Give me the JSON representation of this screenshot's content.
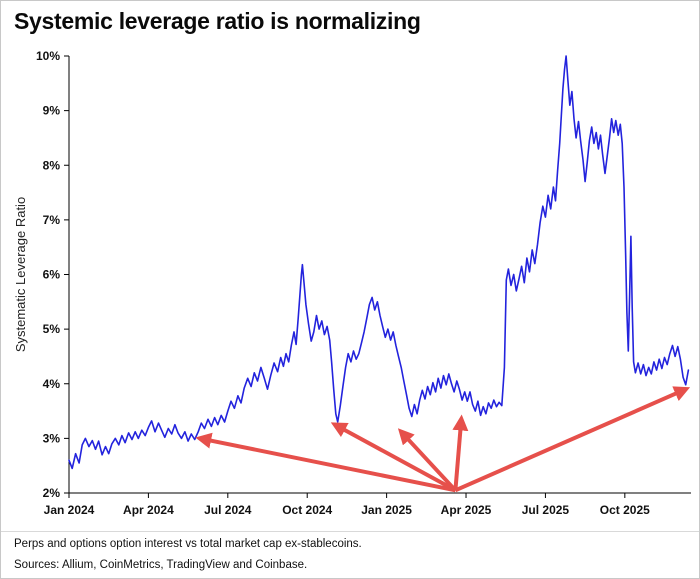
{
  "header": {
    "title": "Systemic leverage ratio is normalizing"
  },
  "footer": {
    "line1": "Perps and options option interest vs total market cap ex-stablecoins.",
    "line2": "Sources: Allium, CoinMetrics, TradingView and Coinbase."
  },
  "chart_data": {
    "type": "line",
    "title": "Systemic leverage ratio is normalizing",
    "xlabel": "",
    "ylabel": "Systematic Leverage Ratio",
    "ylim": [
      2,
      10
    ],
    "xlim": [
      0,
      23.5
    ],
    "x_unit": "months since Jan 2024",
    "grid": false,
    "legend": "none",
    "line_color": "#2323dd",
    "y_ticks": [
      {
        "value": 2,
        "label": "2%"
      },
      {
        "value": 3,
        "label": "3%"
      },
      {
        "value": 4,
        "label": "4%"
      },
      {
        "value": 5,
        "label": "5%"
      },
      {
        "value": 6,
        "label": "6%"
      },
      {
        "value": 7,
        "label": "7%"
      },
      {
        "value": 8,
        "label": "8%"
      },
      {
        "value": 9,
        "label": "9%"
      },
      {
        "value": 10,
        "label": "10%"
      }
    ],
    "x_ticks": [
      {
        "t": 0,
        "label": "Jan 2024"
      },
      {
        "t": 3,
        "label": "Apr 2024"
      },
      {
        "t": 6,
        "label": "Jul 2024"
      },
      {
        "t": 9,
        "label": "Oct 2024"
      },
      {
        "t": 12,
        "label": "Jan 2025"
      },
      {
        "t": 15,
        "label": "Apr 2025"
      },
      {
        "t": 18,
        "label": "Jul 2025"
      },
      {
        "t": 21,
        "label": "Oct 2025"
      }
    ],
    "series": [
      {
        "name": "Systematic Leverage Ratio",
        "points": [
          [
            0.0,
            2.6
          ],
          [
            0.12,
            2.45
          ],
          [
            0.25,
            2.72
          ],
          [
            0.38,
            2.55
          ],
          [
            0.5,
            2.88
          ],
          [
            0.62,
            3.0
          ],
          [
            0.75,
            2.85
          ],
          [
            0.88,
            2.96
          ],
          [
            1.0,
            2.8
          ],
          [
            1.12,
            2.95
          ],
          [
            1.25,
            2.7
          ],
          [
            1.38,
            2.85
          ],
          [
            1.5,
            2.72
          ],
          [
            1.62,
            2.9
          ],
          [
            1.75,
            3.0
          ],
          [
            1.88,
            2.88
          ],
          [
            2.0,
            3.05
          ],
          [
            2.12,
            2.92
          ],
          [
            2.25,
            3.1
          ],
          [
            2.38,
            2.98
          ],
          [
            2.5,
            3.12
          ],
          [
            2.62,
            3.0
          ],
          [
            2.75,
            3.15
          ],
          [
            2.88,
            3.05
          ],
          [
            3.0,
            3.2
          ],
          [
            3.12,
            3.32
          ],
          [
            3.25,
            3.12
          ],
          [
            3.38,
            3.28
          ],
          [
            3.5,
            3.15
          ],
          [
            3.62,
            3.02
          ],
          [
            3.75,
            3.18
          ],
          [
            3.88,
            3.08
          ],
          [
            4.0,
            3.25
          ],
          [
            4.12,
            3.1
          ],
          [
            4.25,
            3.0
          ],
          [
            4.38,
            3.12
          ],
          [
            4.5,
            2.95
          ],
          [
            4.62,
            3.08
          ],
          [
            4.75,
            2.98
          ],
          [
            4.88,
            3.12
          ],
          [
            5.0,
            3.28
          ],
          [
            5.12,
            3.18
          ],
          [
            5.25,
            3.35
          ],
          [
            5.38,
            3.22
          ],
          [
            5.5,
            3.38
          ],
          [
            5.62,
            3.25
          ],
          [
            5.75,
            3.42
          ],
          [
            5.88,
            3.3
          ],
          [
            6.0,
            3.5
          ],
          [
            6.12,
            3.68
          ],
          [
            6.25,
            3.55
          ],
          [
            6.38,
            3.78
          ],
          [
            6.5,
            3.65
          ],
          [
            6.62,
            3.92
          ],
          [
            6.75,
            4.1
          ],
          [
            6.88,
            3.95
          ],
          [
            7.0,
            4.2
          ],
          [
            7.12,
            4.05
          ],
          [
            7.25,
            4.3
          ],
          [
            7.38,
            4.1
          ],
          [
            7.5,
            3.9
          ],
          [
            7.62,
            4.15
          ],
          [
            7.75,
            4.38
          ],
          [
            7.88,
            4.22
          ],
          [
            8.0,
            4.48
          ],
          [
            8.1,
            4.32
          ],
          [
            8.2,
            4.55
          ],
          [
            8.3,
            4.4
          ],
          [
            8.4,
            4.7
          ],
          [
            8.5,
            4.95
          ],
          [
            8.58,
            4.72
          ],
          [
            8.66,
            5.2
          ],
          [
            8.72,
            5.6
          ],
          [
            8.78,
            6.0
          ],
          [
            8.82,
            6.18
          ],
          [
            8.88,
            5.85
          ],
          [
            8.95,
            5.45
          ],
          [
            9.05,
            5.1
          ],
          [
            9.15,
            4.78
          ],
          [
            9.25,
            4.95
          ],
          [
            9.35,
            5.25
          ],
          [
            9.45,
            5.0
          ],
          [
            9.55,
            5.15
          ],
          [
            9.65,
            4.9
          ],
          [
            9.75,
            5.05
          ],
          [
            9.85,
            4.8
          ],
          [
            9.92,
            4.4
          ],
          [
            10.0,
            3.9
          ],
          [
            10.08,
            3.45
          ],
          [
            10.15,
            3.3
          ],
          [
            10.25,
            3.6
          ],
          [
            10.35,
            3.95
          ],
          [
            10.45,
            4.3
          ],
          [
            10.55,
            4.55
          ],
          [
            10.65,
            4.4
          ],
          [
            10.75,
            4.6
          ],
          [
            10.85,
            4.45
          ],
          [
            10.95,
            4.55
          ],
          [
            11.05,
            4.75
          ],
          [
            11.15,
            4.95
          ],
          [
            11.25,
            5.2
          ],
          [
            11.35,
            5.45
          ],
          [
            11.45,
            5.58
          ],
          [
            11.55,
            5.35
          ],
          [
            11.65,
            5.5
          ],
          [
            11.75,
            5.25
          ],
          [
            11.85,
            5.05
          ],
          [
            11.95,
            4.85
          ],
          [
            12.05,
            5.0
          ],
          [
            12.15,
            4.8
          ],
          [
            12.25,
            4.95
          ],
          [
            12.35,
            4.7
          ],
          [
            12.45,
            4.5
          ],
          [
            12.55,
            4.3
          ],
          [
            12.65,
            4.05
          ],
          [
            12.75,
            3.8
          ],
          [
            12.85,
            3.55
          ],
          [
            12.95,
            3.4
          ],
          [
            13.05,
            3.62
          ],
          [
            13.15,
            3.45
          ],
          [
            13.25,
            3.7
          ],
          [
            13.35,
            3.88
          ],
          [
            13.45,
            3.72
          ],
          [
            13.55,
            3.95
          ],
          [
            13.65,
            3.8
          ],
          [
            13.75,
            4.02
          ],
          [
            13.85,
            3.85
          ],
          [
            13.95,
            4.1
          ],
          [
            14.05,
            3.92
          ],
          [
            14.15,
            4.15
          ],
          [
            14.25,
            3.98
          ],
          [
            14.35,
            4.18
          ],
          [
            14.45,
            4.0
          ],
          [
            14.55,
            3.85
          ],
          [
            14.65,
            4.05
          ],
          [
            14.75,
            3.9
          ],
          [
            14.85,
            3.7
          ],
          [
            14.95,
            3.85
          ],
          [
            15.05,
            3.68
          ],
          [
            15.15,
            3.85
          ],
          [
            15.25,
            3.62
          ],
          [
            15.35,
            3.5
          ],
          [
            15.45,
            3.68
          ],
          [
            15.55,
            3.42
          ],
          [
            15.65,
            3.58
          ],
          [
            15.75,
            3.45
          ],
          [
            15.85,
            3.65
          ],
          [
            15.95,
            3.55
          ],
          [
            16.05,
            3.7
          ],
          [
            16.15,
            3.58
          ],
          [
            16.25,
            3.66
          ],
          [
            16.35,
            3.6
          ],
          [
            16.45,
            4.3
          ],
          [
            16.52,
            5.9
          ],
          [
            16.6,
            6.1
          ],
          [
            16.7,
            5.8
          ],
          [
            16.8,
            6.0
          ],
          [
            16.9,
            5.7
          ],
          [
            17.0,
            5.92
          ],
          [
            17.1,
            6.15
          ],
          [
            17.2,
            5.85
          ],
          [
            17.3,
            6.3
          ],
          [
            17.4,
            6.05
          ],
          [
            17.5,
            6.45
          ],
          [
            17.6,
            6.2
          ],
          [
            17.7,
            6.55
          ],
          [
            17.8,
            6.95
          ],
          [
            17.9,
            7.25
          ],
          [
            18.0,
            7.05
          ],
          [
            18.1,
            7.45
          ],
          [
            18.2,
            7.2
          ],
          [
            18.3,
            7.6
          ],
          [
            18.38,
            7.35
          ],
          [
            18.46,
            7.9
          ],
          [
            18.54,
            8.4
          ],
          [
            18.6,
            8.9
          ],
          [
            18.66,
            9.4
          ],
          [
            18.72,
            9.75
          ],
          [
            18.78,
            10.0
          ],
          [
            18.85,
            9.55
          ],
          [
            18.92,
            9.1
          ],
          [
            19.0,
            9.35
          ],
          [
            19.08,
            8.85
          ],
          [
            19.16,
            8.5
          ],
          [
            19.25,
            8.8
          ],
          [
            19.33,
            8.45
          ],
          [
            19.42,
            8.1
          ],
          [
            19.5,
            7.7
          ],
          [
            19.58,
            8.05
          ],
          [
            19.66,
            8.45
          ],
          [
            19.75,
            8.7
          ],
          [
            19.83,
            8.4
          ],
          [
            19.92,
            8.6
          ],
          [
            20.0,
            8.3
          ],
          [
            20.08,
            8.55
          ],
          [
            20.16,
            8.2
          ],
          [
            20.25,
            7.85
          ],
          [
            20.33,
            8.15
          ],
          [
            20.42,
            8.5
          ],
          [
            20.5,
            8.85
          ],
          [
            20.58,
            8.6
          ],
          [
            20.66,
            8.82
          ],
          [
            20.75,
            8.55
          ],
          [
            20.83,
            8.75
          ],
          [
            20.9,
            8.4
          ],
          [
            20.97,
            7.6
          ],
          [
            21.03,
            6.4
          ],
          [
            21.08,
            5.3
          ],
          [
            21.13,
            4.6
          ],
          [
            21.18,
            5.6
          ],
          [
            21.23,
            6.7
          ],
          [
            21.28,
            5.4
          ],
          [
            21.33,
            4.4
          ],
          [
            21.4,
            4.2
          ],
          [
            21.5,
            4.38
          ],
          [
            21.6,
            4.18
          ],
          [
            21.7,
            4.35
          ],
          [
            21.8,
            4.15
          ],
          [
            21.9,
            4.3
          ],
          [
            22.0,
            4.18
          ],
          [
            22.1,
            4.4
          ],
          [
            22.2,
            4.25
          ],
          [
            22.3,
            4.45
          ],
          [
            22.4,
            4.28
          ],
          [
            22.5,
            4.48
          ],
          [
            22.6,
            4.35
          ],
          [
            22.7,
            4.55
          ],
          [
            22.8,
            4.7
          ],
          [
            22.9,
            4.5
          ],
          [
            23.0,
            4.68
          ],
          [
            23.1,
            4.45
          ],
          [
            23.2,
            4.12
          ],
          [
            23.3,
            3.98
          ],
          [
            23.4,
            4.25
          ]
        ]
      }
    ],
    "annotations": {
      "color": "#e6504b",
      "origin": {
        "t": 14.6,
        "v": 2.05
      },
      "arrows": [
        {
          "t": 4.95,
          "v": 3.0
        },
        {
          "t": 10.05,
          "v": 3.25
        },
        {
          "t": 12.55,
          "v": 3.12
        },
        {
          "t": 14.82,
          "v": 3.35
        },
        {
          "t": 23.3,
          "v": 3.9
        }
      ]
    }
  }
}
